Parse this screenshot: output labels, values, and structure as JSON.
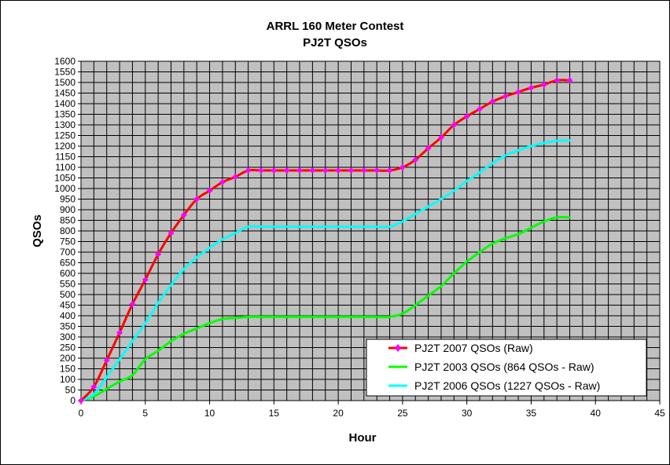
{
  "chart_data": {
    "type": "line",
    "title": "ARRL 160 Meter Contest",
    "subtitle": "PJ2T QSOs",
    "xlabel": "Hour",
    "ylabel": "QSOs",
    "xlim": [
      0,
      45
    ],
    "ylim": [
      0,
      1600
    ],
    "xticks": [
      0,
      5,
      10,
      15,
      20,
      25,
      30,
      35,
      40,
      45
    ],
    "yticks": [
      0,
      50,
      100,
      150,
      200,
      250,
      300,
      350,
      400,
      450,
      500,
      550,
      600,
      650,
      700,
      750,
      800,
      850,
      900,
      950,
      1000,
      1050,
      1100,
      1150,
      1200,
      1250,
      1300,
      1350,
      1400,
      1450,
      1500,
      1550,
      1600
    ],
    "grid": true,
    "plot_background": "#c0c0c0",
    "legend_position": "bottom-right",
    "series": [
      {
        "name": "PJ2T 2007 QSOs (Raw)",
        "color": "#ff0000",
        "marker_color": "#ff00ff",
        "markers": true,
        "x": [
          0,
          1,
          2,
          3,
          4,
          5,
          6,
          7,
          8,
          9,
          10,
          11,
          12,
          13,
          14,
          15,
          16,
          17,
          18,
          19,
          20,
          21,
          22,
          23,
          24,
          25,
          26,
          27,
          28,
          29,
          30,
          31,
          32,
          33,
          34,
          35,
          36,
          37,
          38
        ],
        "y": [
          0,
          65,
          190,
          320,
          455,
          570,
          690,
          790,
          875,
          950,
          990,
          1030,
          1055,
          1085,
          1085,
          1085,
          1085,
          1085,
          1085,
          1085,
          1085,
          1085,
          1085,
          1085,
          1085,
          1100,
          1135,
          1190,
          1240,
          1300,
          1340,
          1375,
          1410,
          1435,
          1455,
          1475,
          1490,
          1510,
          1510
        ]
      },
      {
        "name": "PJ2T 2003 QSOs (864 QSOs - Raw)",
        "color": "#00ff00",
        "markers": false,
        "x": [
          0,
          1,
          2,
          3,
          4,
          5,
          6,
          7,
          8,
          9,
          10,
          11,
          12,
          13,
          14,
          15,
          16,
          17,
          18,
          19,
          20,
          21,
          22,
          23,
          24,
          25,
          26,
          27,
          28,
          29,
          30,
          31,
          32,
          33,
          34,
          35,
          36,
          37,
          38
        ],
        "y": [
          0,
          20,
          55,
          90,
          120,
          195,
          235,
          280,
          315,
          340,
          365,
          385,
          390,
          395,
          395,
          395,
          395,
          395,
          395,
          395,
          395,
          395,
          395,
          395,
          395,
          410,
          450,
          495,
          540,
          600,
          655,
          700,
          740,
          765,
          785,
          815,
          845,
          864,
          864
        ]
      },
      {
        "name": "PJ2T 2006 QSOs (1227 QSOs - Raw)",
        "color": "#00ffff",
        "markers": false,
        "x": [
          0,
          1,
          2,
          3,
          4,
          5,
          6,
          7,
          8,
          9,
          10,
          11,
          12,
          13,
          14,
          15,
          16,
          17,
          18,
          19,
          20,
          21,
          22,
          23,
          24,
          25,
          26,
          27,
          28,
          29,
          30,
          31,
          32,
          33,
          34,
          35,
          36,
          37,
          38
        ],
        "y": [
          0,
          30,
          110,
          195,
          280,
          365,
          460,
          545,
          620,
          675,
          720,
          760,
          790,
          820,
          820,
          820,
          820,
          820,
          820,
          820,
          820,
          820,
          820,
          820,
          820,
          845,
          880,
          915,
          950,
          990,
          1035,
          1075,
          1120,
          1155,
          1180,
          1200,
          1215,
          1225,
          1227
        ]
      }
    ]
  }
}
